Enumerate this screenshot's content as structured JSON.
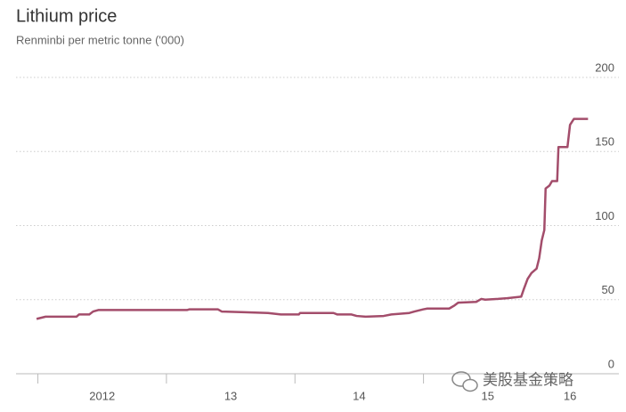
{
  "chart_data": {
    "type": "line",
    "title": "Lithium price",
    "subtitle": "Renminbi per metric tonne ('000)",
    "x": [
      2011.99,
      2012.06,
      2012.3,
      2012.32,
      2012.4,
      2012.43,
      2012.47,
      2013.16,
      2013.18,
      2013.4,
      2013.43,
      2013.61,
      2013.79,
      2013.89,
      2014.03,
      2014.04,
      2014.3,
      2014.33,
      2014.44,
      2014.48,
      2014.55,
      2014.69,
      2014.75,
      2014.89,
      2014.93,
      2015.0,
      2015.03,
      2015.2,
      2015.24,
      2015.27,
      2015.41,
      2015.45,
      2015.48,
      2015.58,
      2015.65,
      2015.76,
      2015.78,
      2015.81,
      2015.84,
      2015.88,
      2015.9,
      2015.92,
      2015.94,
      2015.95,
      2015.98,
      2016.0,
      2016.04,
      2016.05,
      2016.12,
      2016.14,
      2016.17,
      2016.28
    ],
    "series": [
      {
        "name": "Lithium price",
        "color": "#a34d6b",
        "values": [
          37,
          38.5,
          38.5,
          40,
          40,
          42,
          43,
          43,
          43.5,
          43.5,
          42,
          41.5,
          41,
          40,
          40,
          41,
          41,
          40,
          40,
          39,
          38.5,
          39,
          40,
          41,
          42,
          43.5,
          44,
          44,
          46,
          48,
          48.5,
          50.5,
          50,
          50.5,
          51,
          52,
          57,
          64,
          68,
          71,
          78,
          90,
          97,
          125,
          127,
          130,
          130,
          153,
          153,
          168,
          172,
          172
        ]
      }
    ],
    "xlim": [
      2011.83,
      2016.52
    ],
    "xticks": [
      {
        "value": 2012,
        "label": "2012"
      },
      {
        "value": 2013,
        "label": "13"
      },
      {
        "value": 2014,
        "label": "14"
      },
      {
        "value": 2015,
        "label": "15"
      },
      {
        "value": 2016,
        "label": "16"
      }
    ],
    "ylim": [
      0,
      200
    ],
    "yticks": [
      0,
      50,
      100,
      150,
      200
    ],
    "grid": true,
    "watermark": "美股基金策略"
  }
}
